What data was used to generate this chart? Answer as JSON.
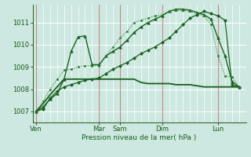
{
  "bg_color": "#cce8e0",
  "grid_color": "#ffffff",
  "vline_color": "#cc9999",
  "xlabel": "Pression niveau de la mer( hPa )",
  "ylim": [
    1006.5,
    1011.8
  ],
  "yticks": [
    1007,
    1008,
    1009,
    1010,
    1011
  ],
  "x_day_labels": [
    "Ven",
    "Mar",
    "Sam",
    "Dim",
    "Lun"
  ],
  "x_day_positions": [
    0,
    9,
    12,
    18,
    26
  ],
  "xlim": [
    -0.5,
    30
  ],
  "series": [
    {
      "x": [
        0,
        1,
        2,
        3,
        4,
        5,
        6,
        7,
        8,
        9,
        10,
        11,
        12,
        13,
        14,
        15,
        16,
        17,
        18,
        19,
        20,
        21,
        22,
        23,
        24,
        25,
        26,
        27,
        28,
        29
      ],
      "y": [
        1007.0,
        1007.1,
        1007.6,
        1007.9,
        1008.1,
        1008.2,
        1008.3,
        1008.4,
        1008.45,
        1008.5,
        1008.7,
        1008.9,
        1009.05,
        1009.2,
        1009.4,
        1009.6,
        1009.75,
        1009.9,
        1010.1,
        1010.3,
        1010.6,
        1010.9,
        1011.2,
        1011.35,
        1011.5,
        1011.4,
        1011.3,
        1011.1,
        1008.2,
        1008.1
      ],
      "color": "#1a6020",
      "lw": 0.9,
      "marker": "D",
      "ms": 2.0,
      "ls": "-"
    },
    {
      "x": [
        0,
        1,
        2,
        3,
        4,
        5,
        6,
        7,
        8,
        9,
        10,
        11,
        12,
        13,
        14,
        15,
        16,
        17,
        18,
        19,
        20,
        21,
        22,
        23,
        24,
        25,
        26,
        27,
        28,
        29
      ],
      "y": [
        1007.0,
        1007.2,
        1007.55,
        1007.8,
        1008.45,
        1009.7,
        1010.35,
        1010.4,
        1009.1,
        1009.1,
        1009.5,
        1009.7,
        1009.9,
        1010.2,
        1010.55,
        1010.8,
        1011.0,
        1011.15,
        1011.3,
        1011.5,
        1011.6,
        1011.6,
        1011.55,
        1011.45,
        1011.35,
        1011.15,
        1010.3,
        1009.5,
        1008.35,
        1008.1
      ],
      "color": "#1a6020",
      "lw": 1.0,
      "marker": "^",
      "ms": 2.5,
      "ls": "-"
    },
    {
      "x": [
        0,
        1,
        2,
        3,
        4,
        5,
        6,
        7,
        8,
        9,
        10,
        11,
        12,
        13,
        14,
        15,
        16,
        17,
        18,
        19,
        20,
        21,
        22,
        23,
        24,
        25,
        26,
        27,
        28,
        29
      ],
      "y": [
        1007.0,
        1007.35,
        1007.75,
        1008.1,
        1008.45,
        1008.45,
        1008.45,
        1008.45,
        1008.45,
        1008.45,
        1008.45,
        1008.45,
        1008.45,
        1008.45,
        1008.45,
        1008.3,
        1008.25,
        1008.25,
        1008.25,
        1008.25,
        1008.2,
        1008.2,
        1008.2,
        1008.15,
        1008.1,
        1008.1,
        1008.1,
        1008.1,
        1008.1,
        1008.1
      ],
      "color": "#1a6020",
      "lw": 1.3,
      "marker": null,
      "ms": 0,
      "ls": "-"
    },
    {
      "x": [
        0,
        1,
        2,
        3,
        4,
        5,
        6,
        7,
        8,
        9,
        10,
        11,
        12,
        13,
        14,
        15,
        16,
        17,
        18,
        19,
        20,
        21,
        22,
        23,
        24,
        25,
        26,
        27,
        28,
        29
      ],
      "y": [
        1007.0,
        1007.45,
        1008.0,
        1008.45,
        1008.85,
        1008.9,
        1009.0,
        1009.05,
        1009.05,
        1009.05,
        1009.5,
        1009.9,
        1010.3,
        1010.6,
        1011.0,
        1011.1,
        1011.2,
        1011.3,
        1011.35,
        1011.5,
        1011.55,
        1011.55,
        1011.5,
        1011.4,
        1011.3,
        1010.9,
        1009.5,
        1008.6,
        1008.55,
        1008.1
      ],
      "color": "#2d7a2d",
      "lw": 0.8,
      "marker": "o",
      "ms": 1.5,
      "ls": ":"
    }
  ],
  "vlines_dark": [
    0,
    9,
    12,
    18,
    26
  ],
  "vlines_pink": [
    1,
    2,
    3,
    4,
    5,
    6,
    7,
    8,
    10,
    11,
    13,
    14,
    15,
    16,
    17,
    19,
    20,
    21,
    22,
    23,
    24,
    25,
    27,
    28,
    29
  ]
}
